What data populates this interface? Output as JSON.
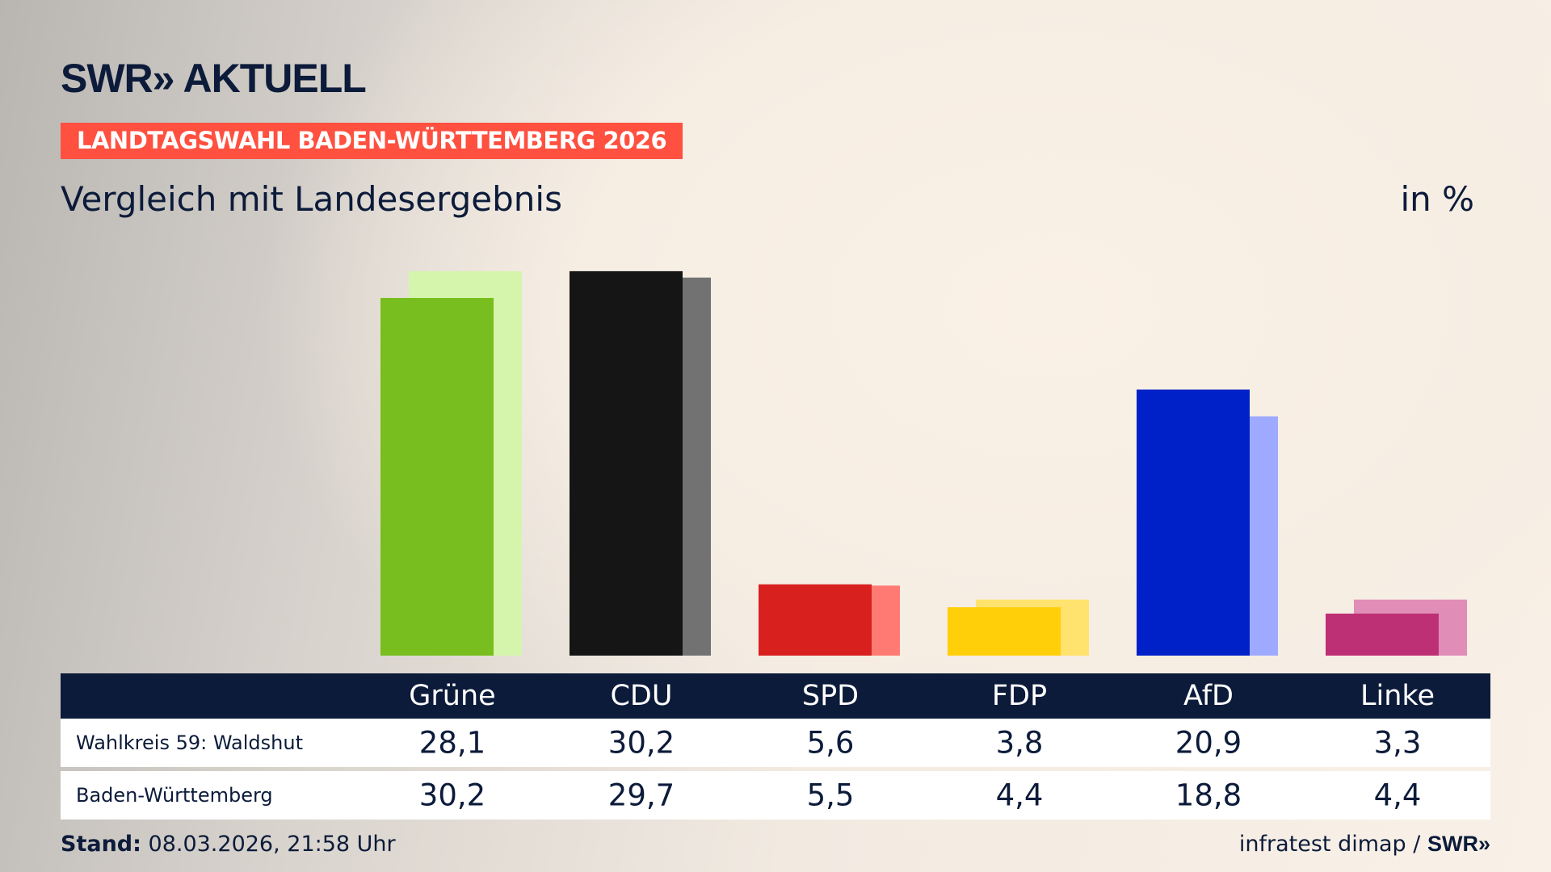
{
  "header": {
    "logo": "SWR» AKTUELL",
    "banner": "LANDTAGSWAHL BADEN-WÜRTTEMBERG 2026",
    "subtitle": "Vergleich mit Landesergebnis",
    "unit": "in %"
  },
  "chart_data": {
    "type": "bar",
    "title": "Vergleich mit Landesergebnis",
    "ylabel": "in %",
    "ylim": [
      0,
      30.2
    ],
    "grid": false,
    "categories": [
      "Grüne",
      "CDU",
      "SPD",
      "FDP",
      "AfD",
      "Linke"
    ],
    "series": [
      {
        "name": "Wahlkreis 59: Waldshut",
        "values": [
          28.1,
          30.2,
          5.6,
          3.8,
          20.9,
          3.3
        ],
        "colors": [
          "#78be1e",
          "#151515",
          "#d8201f",
          "#ffcf0a",
          "#0021c8",
          "#be3075"
        ]
      },
      {
        "name": "Baden-Württemberg",
        "values": [
          30.2,
          29.7,
          5.5,
          4.4,
          18.8,
          4.4
        ],
        "colors": [
          "#d5f5ac",
          "#727272",
          "#ff7a72",
          "#ffe36e",
          "#9eaaff",
          "#e08db8"
        ]
      }
    ]
  },
  "table": {
    "headers": [
      "Grüne",
      "CDU",
      "SPD",
      "FDP",
      "AfD",
      "Linke"
    ],
    "rows": [
      {
        "label": "Wahlkreis 59: Waldshut",
        "values": [
          "28,1",
          "30,2",
          "5,6",
          "3,8",
          "20,9",
          "3,3"
        ]
      },
      {
        "label": "Baden-Württemberg",
        "values": [
          "30,2",
          "29,7",
          "5,5",
          "4,4",
          "18,8",
          "4,4"
        ]
      }
    ]
  },
  "footer": {
    "stand_label": "Stand:",
    "stand_value": "08.03.2026, 21:58 Uhr",
    "source": "infratest dimap /",
    "source_logo": "SWR»"
  }
}
